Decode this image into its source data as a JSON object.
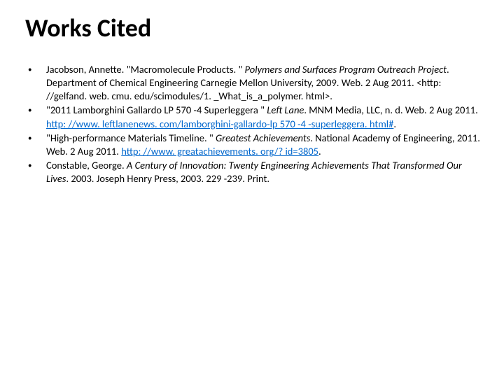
{
  "title": "Works Cited",
  "bullet_char": "•",
  "colors": {
    "text": "#000000",
    "link": "#0066cc",
    "background": "#ffffff"
  },
  "typography": {
    "title_fontsize": 36,
    "title_weight": 700,
    "body_fontsize": 14.5,
    "line_height": 1.32,
    "font_family": "Calibri"
  },
  "citations": [
    {
      "parts": [
        {
          "text": "Jacobson, Annette. \"Macromolecule Products. \" "
        },
        {
          "text": "Polymers and Surfaces Program Outreach Project",
          "italic": true
        },
        {
          "text": ". Department of Chemical Engineering Carnegie Mellon University, 2009. Web. 2 Aug 2011. <http: //gelfand. web. cmu. edu/scimodules/1. _What_is_a_polymer. html>."
        }
      ]
    },
    {
      "parts": [
        {
          "text": "\"2011 Lamborghini Gallardo LP 570 -4 Superleggera \" "
        },
        {
          "text": "Left Lane",
          "italic": true
        },
        {
          "text": ". MNM Media, LLC, n. d. Web. 2 Aug 2011. "
        },
        {
          "text": "http: //www. leftlanenews. com/lamborghini-gallardo-lp 570 -4 -superleggera. html#",
          "link": true
        },
        {
          "text": "."
        }
      ]
    },
    {
      "parts": [
        {
          "text": "\"High-performance Materials Timeline. \" "
        },
        {
          "text": "Greatest Achievements",
          "italic": true
        },
        {
          "text": ". National Academy of Engineering, 2011. Web. 2 Aug 2011. "
        },
        {
          "text": "http: //www. greatachievements. org/? id=3805",
          "link": true
        },
        {
          "text": "."
        }
      ]
    },
    {
      "parts": [
        {
          "text": "Constable, George. "
        },
        {
          "text": "A Century of Innovation: Twenty Engineering Achievements That Transformed Our Lives",
          "italic": true
        },
        {
          "text": ". 2003. Joseph Henry Press, 2003. 229 -239. Print."
        }
      ]
    }
  ]
}
